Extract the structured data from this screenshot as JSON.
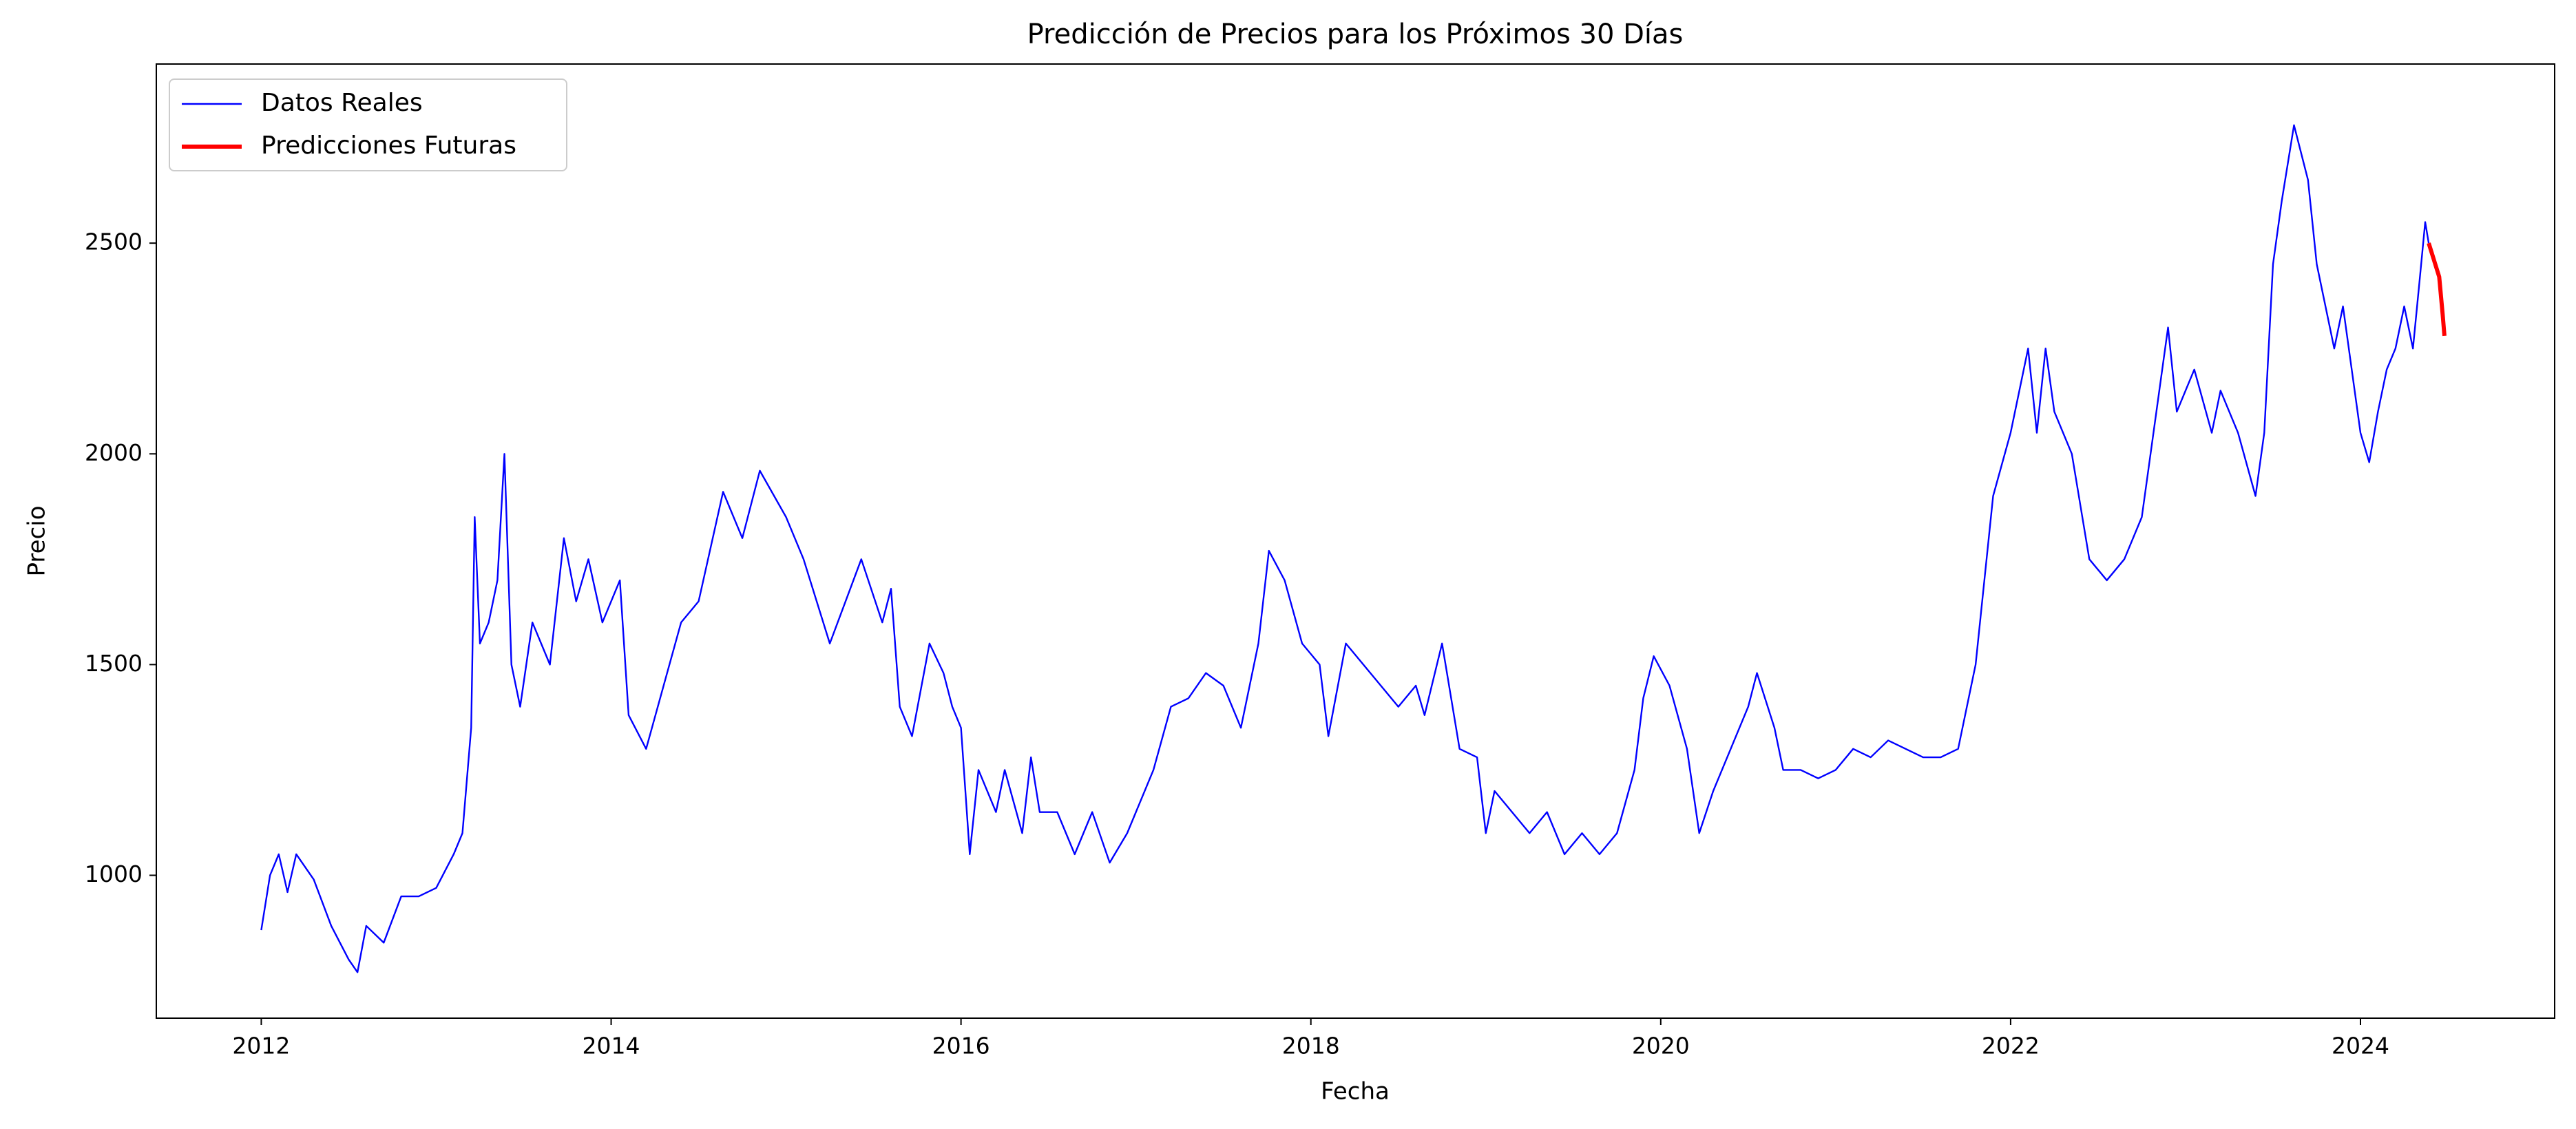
{
  "chart_data": {
    "type": "line",
    "title": "Predicción de Precios para los Próximos 30 Días",
    "x_label": "Fecha",
    "y_label": "Precio",
    "xlim": [
      2011.4,
      2025.11
    ],
    "ylim": [
      661,
      2925
    ],
    "xticks": [
      2012,
      2014,
      2016,
      2018,
      2020,
      2022,
      2024
    ],
    "yticks": [
      1000,
      1500,
      2000,
      2500
    ],
    "grid": false,
    "legend": "upper left",
    "series": [
      {
        "name": "Datos Reales",
        "color": "#0000ff",
        "width": 1,
        "x": [
          2012.0,
          2012.05,
          2012.1,
          2012.15,
          2012.2,
          2012.3,
          2012.4,
          2012.5,
          2012.55,
          2012.6,
          2012.7,
          2012.8,
          2012.9,
          2013.0,
          2013.1,
          2013.15,
          2013.2,
          2013.22,
          2013.25,
          2013.3,
          2013.35,
          2013.39,
          2013.43,
          2013.48,
          2013.55,
          2013.65,
          2013.73,
          2013.8,
          2013.87,
          2013.95,
          2014.05,
          2014.1,
          2014.2,
          2014.3,
          2014.4,
          2014.5,
          2014.64,
          2014.75,
          2014.85,
          2015.0,
          2015.1,
          2015.25,
          2015.43,
          2015.55,
          2015.6,
          2015.65,
          2015.72,
          2015.82,
          2015.9,
          2015.95,
          2016.0,
          2016.05,
          2016.1,
          2016.2,
          2016.25,
          2016.35,
          2016.4,
          2016.45,
          2016.55,
          2016.65,
          2016.75,
          2016.85,
          2016.95,
          2017.0,
          2017.1,
          2017.2,
          2017.3,
          2017.4,
          2017.5,
          2017.6,
          2017.7,
          2017.76,
          2017.85,
          2017.95,
          2018.05,
          2018.1,
          2018.2,
          2018.3,
          2018.4,
          2018.5,
          2018.6,
          2018.65,
          2018.75,
          2018.85,
          2018.95,
          2019.0,
          2019.05,
          2019.15,
          2019.25,
          2019.35,
          2019.45,
          2019.55,
          2019.65,
          2019.75,
          2019.85,
          2019.9,
          2019.96,
          2020.05,
          2020.15,
          2020.22,
          2020.3,
          2020.4,
          2020.5,
          2020.55,
          2020.65,
          2020.7,
          2020.8,
          2020.9,
          2021.0,
          2021.1,
          2021.2,
          2021.3,
          2021.4,
          2021.5,
          2021.6,
          2021.7,
          2021.8,
          2021.9,
          2022.0,
          2022.05,
          2022.1,
          2022.15,
          2022.2,
          2022.25,
          2022.35,
          2022.45,
          2022.55,
          2022.65,
          2022.75,
          2022.85,
          2022.9,
          2022.95,
          2023.05,
          2023.15,
          2023.2,
          2023.3,
          2023.4,
          2023.45,
          2023.5,
          2023.55,
          2023.62,
          2023.7,
          2023.75,
          2023.85,
          2023.9,
          2024.0,
          2024.05,
          2024.1,
          2024.15,
          2024.2,
          2024.25,
          2024.3,
          2024.34,
          2024.37,
          2024.39
        ],
        "values": [
          870,
          1000,
          1050,
          960,
          1050,
          990,
          880,
          800,
          770,
          880,
          840,
          950,
          950,
          970,
          1050,
          1100,
          1350,
          1850,
          1550,
          1600,
          1700,
          2000,
          1500,
          1400,
          1600,
          1500,
          1800,
          1650,
          1750,
          1600,
          1700,
          1380,
          1300,
          1450,
          1600,
          1650,
          1910,
          1800,
          1960,
          1850,
          1750,
          1550,
          1750,
          1600,
          1680,
          1400,
          1330,
          1550,
          1480,
          1400,
          1350,
          1050,
          1250,
          1150,
          1250,
          1100,
          1280,
          1150,
          1150,
          1050,
          1150,
          1030,
          1100,
          1150,
          1250,
          1400,
          1420,
          1480,
          1450,
          1350,
          1550,
          1770,
          1700,
          1550,
          1500,
          1330,
          1550,
          1500,
          1450,
          1400,
          1450,
          1380,
          1550,
          1300,
          1280,
          1100,
          1200,
          1150,
          1100,
          1150,
          1050,
          1100,
          1050,
          1100,
          1250,
          1420,
          1520,
          1450,
          1300,
          1100,
          1200,
          1300,
          1400,
          1480,
          1350,
          1250,
          1250,
          1230,
          1250,
          1300,
          1280,
          1320,
          1300,
          1280,
          1280,
          1300,
          1500,
          1900,
          2050,
          2150,
          2250,
          2050,
          2250,
          2100,
          2000,
          1750,
          1700,
          1750,
          1850,
          2150,
          2300,
          2100,
          2200,
          2050,
          2150,
          2050,
          1900,
          2050,
          2450,
          2600,
          2780,
          2650,
          2450,
          2250,
          2350,
          2050,
          1980,
          2100,
          2200,
          2250,
          2350,
          2250,
          2420,
          2550,
          2500
        ]
      },
      {
        "name": "Predicciones Futuras",
        "color": "#ff0000",
        "width": 2.5,
        "x": [
          2024.39,
          2024.42,
          2024.45,
          2024.47,
          2024.48
        ],
        "values": [
          2500,
          2460,
          2420,
          2330,
          2280
        ]
      }
    ]
  }
}
